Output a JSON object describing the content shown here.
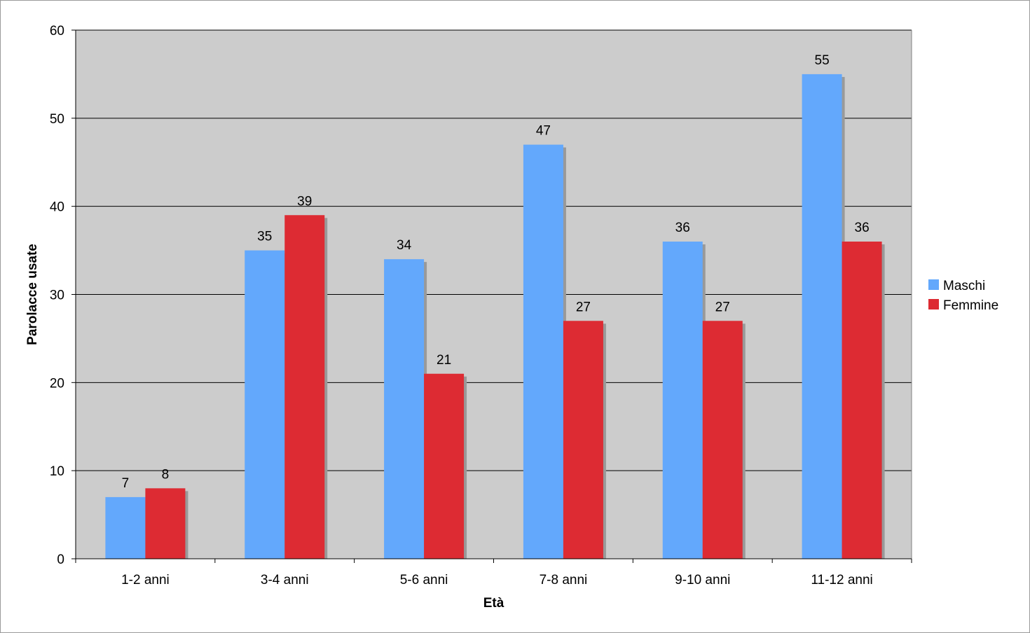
{
  "chart_data": {
    "type": "bar",
    "title": "",
    "xlabel": "Età",
    "ylabel": "Parolacce usate",
    "ylim": [
      0,
      60
    ],
    "yticks": [
      0,
      10,
      20,
      30,
      40,
      50,
      60
    ],
    "grid": true,
    "legend_position": "right",
    "plot_background": "#cccccc",
    "categories": [
      "1-2 anni",
      "3-4 anni",
      "5-6 anni",
      "7-8 anni",
      "9-10 anni",
      "11-12 anni"
    ],
    "series": [
      {
        "name": "Maschi",
        "color": "#63a8fc",
        "values": [
          7,
          35,
          34,
          47,
          36,
          55
        ]
      },
      {
        "name": "Femmine",
        "color": "#dd2b33",
        "values": [
          8,
          39,
          21,
          27,
          27,
          36
        ]
      }
    ],
    "shadow_color": "#999999"
  }
}
